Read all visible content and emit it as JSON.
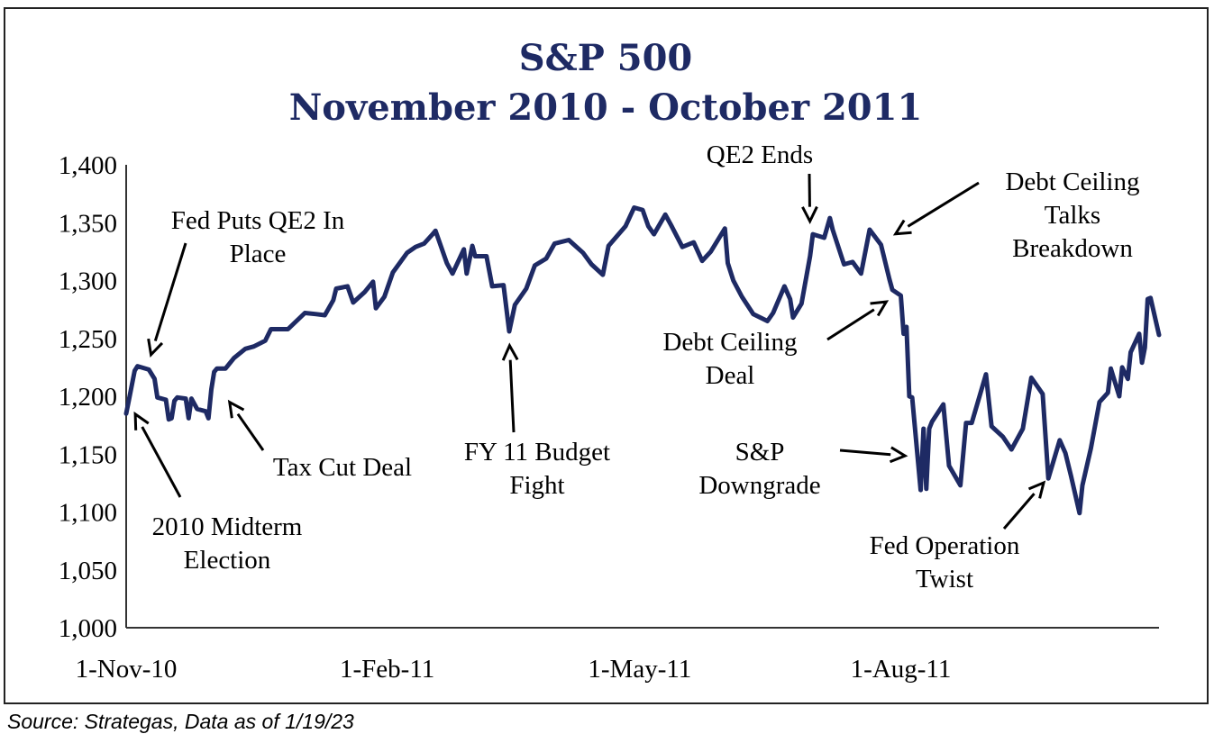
{
  "chart_data": {
    "type": "line",
    "title": "S&P 500",
    "subtitle": "November 2010 - October 2011",
    "ylim": [
      1000,
      1400
    ],
    "xlim": [
      "2010-11-01",
      "2011-10-31"
    ],
    "yticks": [
      1000,
      1050,
      1100,
      1150,
      1200,
      1250,
      1300,
      1350,
      1400
    ],
    "ytick_labels": [
      "1,000",
      "1,050",
      "1,100",
      "1,150",
      "1,200",
      "1,250",
      "1,300",
      "1,350",
      "1,400"
    ],
    "xticks": [
      {
        "date": "2010-11-01",
        "label": "1-Nov-10"
      },
      {
        "date": "2011-02-01",
        "label": "1-Feb-11"
      },
      {
        "date": "2011-05-01",
        "label": "1-May-11"
      },
      {
        "date": "2011-08-01",
        "label": "1-Aug-11"
      }
    ],
    "grid": false,
    "line_color": "#1e2a64",
    "series": [
      {
        "points": [
          [
            "2010-11-01",
            1185
          ],
          [
            "2010-11-02",
            1197
          ],
          [
            "2010-11-04",
            1222
          ],
          [
            "2010-11-05",
            1226
          ],
          [
            "2010-11-09",
            1223
          ],
          [
            "2010-11-11",
            1215
          ],
          [
            "2010-11-12",
            1199
          ],
          [
            "2010-11-15",
            1197
          ],
          [
            "2010-11-16",
            1180
          ],
          [
            "2010-11-17",
            1181
          ],
          [
            "2010-11-18",
            1196
          ],
          [
            "2010-11-19",
            1199
          ],
          [
            "2010-11-22",
            1198
          ],
          [
            "2010-11-23",
            1181
          ],
          [
            "2010-11-24",
            1198
          ],
          [
            "2010-11-26",
            1189
          ],
          [
            "2010-11-29",
            1187
          ],
          [
            "2010-11-30",
            1181
          ],
          [
            "2010-12-01",
            1206
          ],
          [
            "2010-12-02",
            1221
          ],
          [
            "2010-12-03",
            1224
          ],
          [
            "2010-12-06",
            1224
          ],
          [
            "2010-12-09",
            1233
          ],
          [
            "2010-12-13",
            1241
          ],
          [
            "2010-12-16",
            1243
          ],
          [
            "2010-12-20",
            1248
          ],
          [
            "2010-12-22",
            1258
          ],
          [
            "2010-12-28",
            1258
          ],
          [
            "2011-01-03",
            1272
          ],
          [
            "2011-01-07",
            1271
          ],
          [
            "2011-01-10",
            1270
          ],
          [
            "2011-01-13",
            1283
          ],
          [
            "2011-01-14",
            1293
          ],
          [
            "2011-01-18",
            1295
          ],
          [
            "2011-01-20",
            1281
          ],
          [
            "2011-01-24",
            1290
          ],
          [
            "2011-01-27",
            1299
          ],
          [
            "2011-01-28",
            1276
          ],
          [
            "2011-01-31",
            1286
          ],
          [
            "2011-02-03",
            1307
          ],
          [
            "2011-02-08",
            1324
          ],
          [
            "2011-02-11",
            1329
          ],
          [
            "2011-02-14",
            1332
          ],
          [
            "2011-02-17",
            1340
          ],
          [
            "2011-02-18",
            1343
          ],
          [
            "2011-02-22",
            1315
          ],
          [
            "2011-02-24",
            1306
          ],
          [
            "2011-02-28",
            1327
          ],
          [
            "2011-03-01",
            1306
          ],
          [
            "2011-03-03",
            1330
          ],
          [
            "2011-03-04",
            1321
          ],
          [
            "2011-03-08",
            1321
          ],
          [
            "2011-03-10",
            1295
          ],
          [
            "2011-03-14",
            1296
          ],
          [
            "2011-03-16",
            1256
          ],
          [
            "2011-03-18",
            1279
          ],
          [
            "2011-03-22",
            1293
          ],
          [
            "2011-03-25",
            1313
          ],
          [
            "2011-03-29",
            1319
          ],
          [
            "2011-04-01",
            1332
          ],
          [
            "2011-04-06",
            1335
          ],
          [
            "2011-04-11",
            1324
          ],
          [
            "2011-04-14",
            1314
          ],
          [
            "2011-04-18",
            1305
          ],
          [
            "2011-04-20",
            1330
          ],
          [
            "2011-04-26",
            1347
          ],
          [
            "2011-04-29",
            1363
          ],
          [
            "2011-05-02",
            1361
          ],
          [
            "2011-05-04",
            1347
          ],
          [
            "2011-05-06",
            1340
          ],
          [
            "2011-05-10",
            1357
          ],
          [
            "2011-05-12",
            1348
          ],
          [
            "2011-05-16",
            1329
          ],
          [
            "2011-05-20",
            1333
          ],
          [
            "2011-05-23",
            1317
          ],
          [
            "2011-05-26",
            1325
          ],
          [
            "2011-05-31",
            1345
          ],
          [
            "2011-06-01",
            1315
          ],
          [
            "2011-06-03",
            1300
          ],
          [
            "2011-06-06",
            1286
          ],
          [
            "2011-06-10",
            1271
          ],
          [
            "2011-06-15",
            1265
          ],
          [
            "2011-06-17",
            1272
          ],
          [
            "2011-06-21",
            1295
          ],
          [
            "2011-06-23",
            1284
          ],
          [
            "2011-06-24",
            1268
          ],
          [
            "2011-06-27",
            1280
          ],
          [
            "2011-06-30",
            1321
          ],
          [
            "2011-07-01",
            1340
          ],
          [
            "2011-07-05",
            1337
          ],
          [
            "2011-07-07",
            1354
          ],
          [
            "2011-07-08",
            1344
          ],
          [
            "2011-07-12",
            1314
          ],
          [
            "2011-07-15",
            1316
          ],
          [
            "2011-07-18",
            1306
          ],
          [
            "2011-07-21",
            1344
          ],
          [
            "2011-07-25",
            1331
          ],
          [
            "2011-07-28",
            1301
          ],
          [
            "2011-07-29",
            1292
          ],
          [
            "2011-08-01",
            1287
          ],
          [
            "2011-08-02",
            1254
          ],
          [
            "2011-08-03",
            1260
          ],
          [
            "2011-08-04",
            1200
          ],
          [
            "2011-08-05",
            1199
          ],
          [
            "2011-08-08",
            1119
          ],
          [
            "2011-08-09",
            1172
          ],
          [
            "2011-08-10",
            1120
          ],
          [
            "2011-08-11",
            1172
          ],
          [
            "2011-08-12",
            1178
          ],
          [
            "2011-08-16",
            1193
          ],
          [
            "2011-08-18",
            1140
          ],
          [
            "2011-08-22",
            1123
          ],
          [
            "2011-08-24",
            1177
          ],
          [
            "2011-08-26",
            1177
          ],
          [
            "2011-08-31",
            1219
          ],
          [
            "2011-09-02",
            1174
          ],
          [
            "2011-09-06",
            1165
          ],
          [
            "2011-09-09",
            1154
          ],
          [
            "2011-09-13",
            1172
          ],
          [
            "2011-09-16",
            1216
          ],
          [
            "2011-09-20",
            1202
          ],
          [
            "2011-09-22",
            1129
          ],
          [
            "2011-09-26",
            1162
          ],
          [
            "2011-09-28",
            1151
          ],
          [
            "2011-09-30",
            1131
          ],
          [
            "2011-10-03",
            1099
          ],
          [
            "2011-10-04",
            1123
          ],
          [
            "2011-10-07",
            1155
          ],
          [
            "2011-10-10",
            1195
          ],
          [
            "2011-10-13",
            1203
          ],
          [
            "2011-10-14",
            1224
          ],
          [
            "2011-10-17",
            1200
          ],
          [
            "2011-10-18",
            1225
          ],
          [
            "2011-10-20",
            1215
          ],
          [
            "2011-10-21",
            1238
          ],
          [
            "2011-10-24",
            1254
          ],
          [
            "2011-10-25",
            1229
          ],
          [
            "2011-10-26",
            1242
          ],
          [
            "2011-10-27",
            1284
          ],
          [
            "2011-10-28",
            1285
          ],
          [
            "2011-10-31",
            1253
          ]
        ]
      }
    ],
    "annotations": [
      {
        "lines": [
          "Fed Puts QE2 In",
          "Place"
        ],
        "target": [
          "2010-11-09",
          1230
        ]
      },
      {
        "lines": [
          "2010 Midterm",
          "Election"
        ],
        "target": [
          "2010-11-03",
          1190
        ]
      },
      {
        "lines": [
          "Tax Cut Deal"
        ],
        "target": [
          "2010-12-06",
          1200
        ]
      },
      {
        "lines": [
          "FY 11 Budget",
          "Fight"
        ],
        "target": [
          "2011-03-16",
          1250
        ]
      },
      {
        "lines": [
          "QE2 Ends"
        ],
        "target": [
          "2011-06-30",
          1345
        ]
      },
      {
        "lines": [
          "Debt Ceiling",
          "Talks",
          "Breakdown"
        ],
        "target": [
          "2011-07-28",
          1337
        ]
      },
      {
        "lines": [
          "Debt Ceiling",
          "Deal"
        ],
        "target": [
          "2011-07-29",
          1285
        ]
      },
      {
        "lines": [
          "S&P",
          "Downgrade"
        ],
        "target": [
          "2011-08-05",
          1148
        ]
      },
      {
        "lines": [
          "Fed Operation",
          "Twist"
        ],
        "target": [
          "2011-09-22",
          1130
        ]
      }
    ]
  },
  "source_note": "Source: Strategas, Data as of 1/19/23"
}
